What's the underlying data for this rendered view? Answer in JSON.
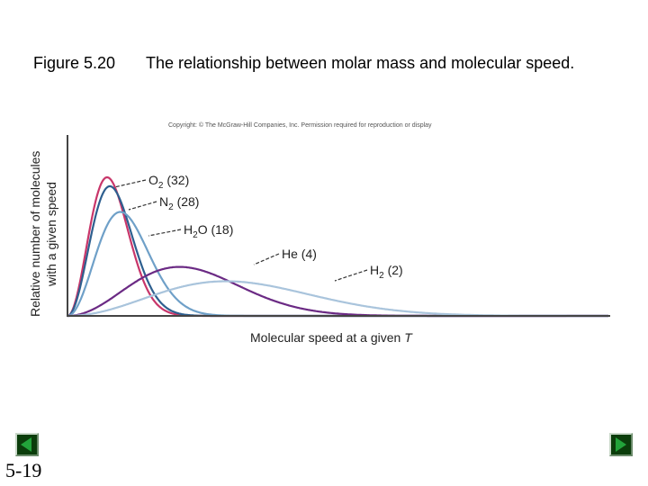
{
  "figure": {
    "label": "Figure 5.20",
    "title": "The relationship between molar mass and molecular speed.",
    "copyright": "Copyright: © The McGraw-Hill Companies, Inc. Permission required for reproduction or display"
  },
  "slide_number": "5-19",
  "navigation": {
    "prev_icon": "triangle-left-icon",
    "next_icon": "triangle-right-icon"
  },
  "chart_data": {
    "type": "line",
    "xlabel": "Molecular speed at a given",
    "xlabel_italic": "T",
    "ylabel_line1": "Relative number of molecules",
    "ylabel_line2": "with a given speed",
    "grid": false,
    "series": [
      {
        "name": "O2 (32)",
        "formula": "O",
        "sub": "2",
        "mass": "(32)",
        "molar_mass": 32,
        "color": "#c8366a"
      },
      {
        "name": "N2 (28)",
        "formula": "N",
        "sub": "2",
        "mass": "(28)",
        "molar_mass": 28,
        "color": "#2e5f8f"
      },
      {
        "name": "H2O (18)",
        "formula": "H",
        "sub": "2",
        "rest": "O",
        "mass": "(18)",
        "molar_mass": 18,
        "color": "#6fa0c8"
      },
      {
        "name": "He (4)",
        "formula": "He",
        "sub": "",
        "mass": "(4)",
        "molar_mass": 4,
        "color": "#6b2a84"
      },
      {
        "name": "H2 (2)",
        "formula": "H",
        "sub": "2",
        "mass": "(2)",
        "molar_mass": 2,
        "color": "#a9c4dc"
      }
    ]
  }
}
